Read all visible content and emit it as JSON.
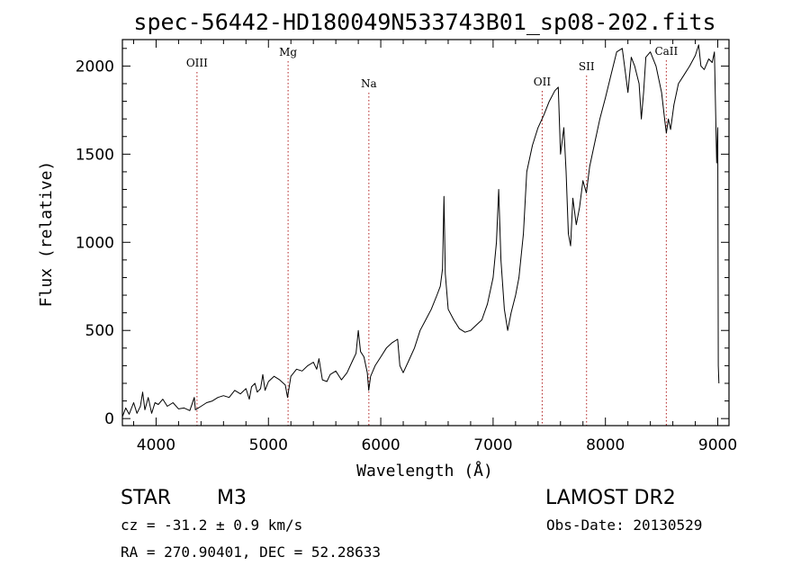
{
  "chart_data": {
    "type": "line",
    "title": "spec-56442-HD180049N533743B01_sp08-202.fits",
    "xlabel": "Wavelength (Å)",
    "ylabel": "Flux (relative)",
    "xlim": [
      3700,
      9100
    ],
    "ylim": [
      -40,
      2150
    ],
    "x_ticks": [
      4000,
      5000,
      6000,
      7000,
      8000,
      9000
    ],
    "y_ticks": [
      0,
      500,
      1000,
      1500,
      2000
    ],
    "grid": false,
    "series": [
      {
        "points": [
          [
            3700,
            10
          ],
          [
            3730,
            60
          ],
          [
            3760,
            25
          ],
          [
            3800,
            90
          ],
          [
            3830,
            30
          ],
          [
            3860,
            70
          ],
          [
            3880,
            150
          ],
          [
            3900,
            50
          ],
          [
            3930,
            120
          ],
          [
            3960,
            30
          ],
          [
            3990,
            90
          ],
          [
            4020,
            80
          ],
          [
            4060,
            110
          ],
          [
            4100,
            70
          ],
          [
            4150,
            90
          ],
          [
            4200,
            55
          ],
          [
            4250,
            60
          ],
          [
            4300,
            45
          ],
          [
            4340,
            120
          ],
          [
            4350,
            50
          ],
          [
            4400,
            70
          ],
          [
            4450,
            90
          ],
          [
            4500,
            100
          ],
          [
            4550,
            120
          ],
          [
            4600,
            130
          ],
          [
            4650,
            120
          ],
          [
            4700,
            160
          ],
          [
            4750,
            140
          ],
          [
            4800,
            170
          ],
          [
            4830,
            110
          ],
          [
            4850,
            180
          ],
          [
            4880,
            200
          ],
          [
            4900,
            150
          ],
          [
            4930,
            170
          ],
          [
            4950,
            250
          ],
          [
            4970,
            160
          ],
          [
            5000,
            210
          ],
          [
            5050,
            240
          ],
          [
            5100,
            220
          ],
          [
            5150,
            190
          ],
          [
            5170,
            120
          ],
          [
            5200,
            240
          ],
          [
            5250,
            280
          ],
          [
            5300,
            270
          ],
          [
            5350,
            300
          ],
          [
            5400,
            320
          ],
          [
            5430,
            280
          ],
          [
            5450,
            340
          ],
          [
            5480,
            220
          ],
          [
            5520,
            210
          ],
          [
            5550,
            250
          ],
          [
            5600,
            270
          ],
          [
            5650,
            220
          ],
          [
            5700,
            260
          ],
          [
            5750,
            330
          ],
          [
            5780,
            370
          ],
          [
            5800,
            500
          ],
          [
            5820,
            380
          ],
          [
            5850,
            350
          ],
          [
            5880,
            260
          ],
          [
            5893,
            160
          ],
          [
            5910,
            240
          ],
          [
            5950,
            300
          ],
          [
            6000,
            350
          ],
          [
            6050,
            400
          ],
          [
            6100,
            430
          ],
          [
            6150,
            450
          ],
          [
            6170,
            300
          ],
          [
            6200,
            260
          ],
          [
            6250,
            330
          ],
          [
            6300,
            400
          ],
          [
            6350,
            500
          ],
          [
            6400,
            560
          ],
          [
            6450,
            620
          ],
          [
            6500,
            700
          ],
          [
            6530,
            750
          ],
          [
            6550,
            850
          ],
          [
            6563,
            1260
          ],
          [
            6575,
            820
          ],
          [
            6600,
            620
          ],
          [
            6650,
            560
          ],
          [
            6700,
            510
          ],
          [
            6750,
            490
          ],
          [
            6800,
            500
          ],
          [
            6850,
            530
          ],
          [
            6900,
            560
          ],
          [
            6950,
            650
          ],
          [
            7000,
            800
          ],
          [
            7030,
            1000
          ],
          [
            7050,
            1300
          ],
          [
            7070,
            900
          ],
          [
            7100,
            620
          ],
          [
            7130,
            500
          ],
          [
            7160,
            600
          ],
          [
            7200,
            700
          ],
          [
            7230,
            800
          ],
          [
            7270,
            1050
          ],
          [
            7300,
            1400
          ],
          [
            7350,
            1550
          ],
          [
            7400,
            1650
          ],
          [
            7450,
            1720
          ],
          [
            7500,
            1800
          ],
          [
            7550,
            1860
          ],
          [
            7580,
            1880
          ],
          [
            7600,
            1500
          ],
          [
            7630,
            1650
          ],
          [
            7650,
            1400
          ],
          [
            7670,
            1050
          ],
          [
            7690,
            980
          ],
          [
            7710,
            1250
          ],
          [
            7740,
            1100
          ],
          [
            7770,
            1200
          ],
          [
            7800,
            1350
          ],
          [
            7830,
            1280
          ],
          [
            7860,
            1430
          ],
          [
            7900,
            1550
          ],
          [
            7950,
            1700
          ],
          [
            8000,
            1820
          ],
          [
            8050,
            1950
          ],
          [
            8100,
            2080
          ],
          [
            8150,
            2100
          ],
          [
            8180,
            1950
          ],
          [
            8200,
            1850
          ],
          [
            8230,
            2050
          ],
          [
            8260,
            2000
          ],
          [
            8300,
            1900
          ],
          [
            8320,
            1700
          ],
          [
            8340,
            1850
          ],
          [
            8360,
            2050
          ],
          [
            8400,
            2080
          ],
          [
            8450,
            2000
          ],
          [
            8500,
            1850
          ],
          [
            8530,
            1680
          ],
          [
            8542,
            1620
          ],
          [
            8560,
            1700
          ],
          [
            8580,
            1640
          ],
          [
            8610,
            1780
          ],
          [
            8650,
            1900
          ],
          [
            8700,
            1950
          ],
          [
            8750,
            2000
          ],
          [
            8800,
            2060
          ],
          [
            8830,
            2120
          ],
          [
            8850,
            2000
          ],
          [
            8880,
            1980
          ],
          [
            8920,
            2040
          ],
          [
            8950,
            2020
          ],
          [
            8970,
            2080
          ],
          [
            8990,
            1450
          ],
          [
            9000,
            1650
          ],
          [
            9005,
            300
          ],
          [
            9010,
            200
          ]
        ]
      }
    ],
    "lines": [
      {
        "label": "OIII",
        "x": 4364
      },
      {
        "label": "Mg",
        "x": 5175
      },
      {
        "label": "Na",
        "x": 5894
      },
      {
        "label": "OII",
        "x": 7437
      },
      {
        "label": "SII",
        "x": 7832
      },
      {
        "label": "CaII",
        "x": 8542
      }
    ]
  },
  "info": {
    "object_type": "STAR",
    "spectral_class": "M3",
    "survey": "LAMOST DR2",
    "cz": "cz = -31.2 ± 0.9 km/s",
    "obs_date": "Obs-Date: 20130529",
    "radec": "RA = 270.90401, DEC =  52.28633"
  },
  "colors": {
    "line_markers": "#b22222",
    "spectrum": "#000000"
  }
}
